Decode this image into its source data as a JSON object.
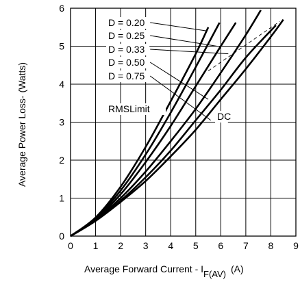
{
  "chart_data": {
    "type": "line",
    "xlabel": "Average Forward Current - I",
    "xlabel_subscript": "F(AV)",
    "xlabel_unit": "(A)",
    "ylabel": "Average Power Loss- (Watts)",
    "xlim": [
      0,
      9
    ],
    "ylim": [
      0,
      6
    ],
    "x_ticks": [
      "0",
      "1",
      "2",
      "3",
      "4",
      "5",
      "6",
      "7",
      "8",
      "9"
    ],
    "y_ticks": [
      "0",
      "1",
      "2",
      "3",
      "4",
      "5",
      "6"
    ],
    "grid": true,
    "series": [
      {
        "name": "D = 0.20",
        "x": [
          0,
          1,
          2,
          3,
          4,
          5,
          5.5
        ],
        "y": [
          0,
          0.49,
          1.3,
          2.35,
          3.55,
          4.8,
          5.5
        ]
      },
      {
        "name": "D = 0.25",
        "x": [
          0,
          1,
          2,
          3,
          4,
          5,
          5.95
        ],
        "y": [
          0,
          0.47,
          1.2,
          2.15,
          3.25,
          4.45,
          5.62
        ]
      },
      {
        "name": "D = 0.33",
        "x": [
          0,
          1,
          2,
          3,
          4,
          5,
          6,
          6.6
        ],
        "y": [
          0,
          0.45,
          1.1,
          1.95,
          2.9,
          3.95,
          5.0,
          5.62
        ]
      },
      {
        "name": "D = 0.50",
        "x": [
          0,
          1,
          2,
          3,
          4,
          5,
          6,
          7,
          7.6
        ],
        "y": [
          0,
          0.43,
          1.0,
          1.7,
          2.5,
          3.35,
          4.3,
          5.3,
          5.95
        ]
      },
      {
        "name": "D = 0.75",
        "x": [
          0,
          1,
          2,
          3,
          4,
          5,
          6,
          7,
          8.2
        ],
        "y": [
          0,
          0.41,
          0.93,
          1.55,
          2.25,
          3.05,
          3.85,
          4.7,
          5.55
        ]
      },
      {
        "name": "DC",
        "x": [
          0,
          1,
          2,
          3,
          4,
          5,
          6,
          7,
          8,
          8.5
        ],
        "y": [
          0,
          0.4,
          0.9,
          1.45,
          2.1,
          2.8,
          3.6,
          4.4,
          5.25,
          5.7
        ]
      }
    ],
    "annotations": [
      {
        "text": "RMSLimit",
        "type": "dashed-line",
        "x": [
          5.5,
          8.35
        ],
        "y": [
          4.35,
          5.65
        ]
      }
    ]
  }
}
